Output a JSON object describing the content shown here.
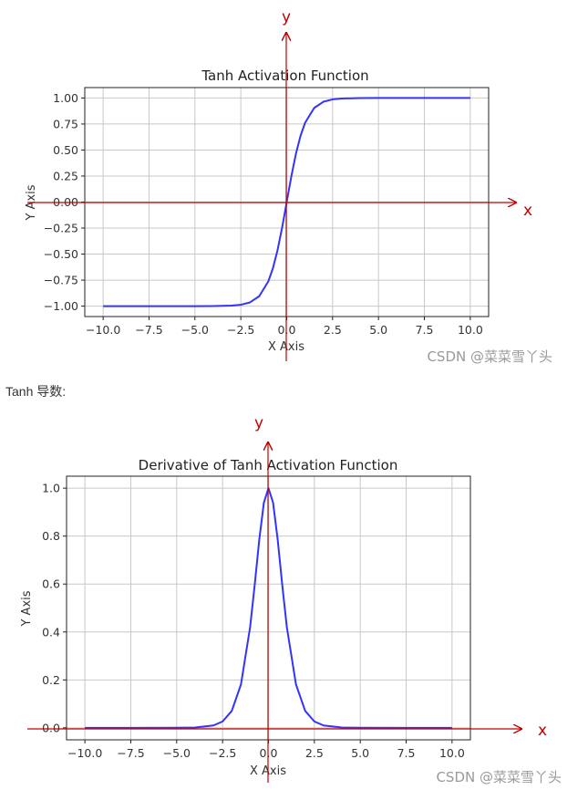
{
  "between_text": "Tanh 导数:",
  "watermark": "CSDN @菜菜雪丫头",
  "colors": {
    "series": "#3333ff",
    "annotation": "#c00000",
    "grid": "#c8c8c8",
    "frame": "#222222",
    "tick_text": "#333333",
    "watermark": "#9a9a9a"
  },
  "chart_data": [
    {
      "type": "line",
      "title": "Tanh Activation Function",
      "xlabel": "X Axis",
      "ylabel": "Y Axis",
      "xlim": [
        -11,
        11
      ],
      "ylim": [
        -1.1,
        1.1
      ],
      "xticks": [
        -10.0,
        -7.5,
        -5.0,
        -2.5,
        0.0,
        2.5,
        5.0,
        7.5,
        10.0
      ],
      "xtick_labels": [
        "−10.0",
        "−7.5",
        "−5.0",
        "−2.5",
        "0.0",
        "2.5",
        "5.0",
        "7.5",
        "10.0"
      ],
      "yticks": [
        1.0,
        0.75,
        0.5,
        0.25,
        0.0,
        -0.25,
        -0.5,
        -0.75,
        -1.0
      ],
      "ytick_labels": [
        "1.00",
        "0.75",
        "0.50",
        "0.25",
        "0.00",
        "−0.25",
        "−0.50",
        "−0.75",
        "−1.00"
      ],
      "grid": true,
      "series": [
        {
          "x": [
            -10,
            -7.5,
            -5,
            -4,
            -3,
            -2.5,
            -2,
            -1.5,
            -1,
            -0.75,
            -0.5,
            -0.25,
            0,
            0.25,
            0.5,
            0.75,
            1,
            1.5,
            2,
            2.5,
            3,
            4,
            5,
            7.5,
            10
          ],
          "y": [
            -1.0,
            -1.0,
            -0.9999,
            -0.9993,
            -0.9951,
            -0.9866,
            -0.964,
            -0.9051,
            -0.7616,
            -0.6351,
            -0.4621,
            -0.2449,
            0.0,
            0.2449,
            0.4621,
            0.6351,
            0.7616,
            0.9051,
            0.964,
            0.9866,
            0.9951,
            0.9993,
            0.9999,
            1.0,
            1.0
          ]
        }
      ],
      "annotations": {
        "x_arrow_label": "x",
        "y_arrow_label": "y"
      }
    },
    {
      "type": "line",
      "title": "Derivative of Tanh Activation Function",
      "xlabel": "X Axis",
      "ylabel": "Y Axis",
      "xlim": [
        -11,
        11
      ],
      "ylim": [
        -0.05,
        1.05
      ],
      "xticks": [
        -10.0,
        -7.5,
        -5.0,
        -2.5,
        0.0,
        2.5,
        5.0,
        7.5,
        10.0
      ],
      "xtick_labels": [
        "−10.0",
        "−7.5",
        "−5.0",
        "−2.5",
        "0.0",
        "2.5",
        "5.0",
        "7.5",
        "10.0"
      ],
      "yticks": [
        1.0,
        0.8,
        0.6,
        0.4,
        0.2,
        0.0
      ],
      "ytick_labels": [
        "1.0",
        "0.8",
        "0.6",
        "0.4",
        "0.2",
        "0.0"
      ],
      "grid": true,
      "series": [
        {
          "x": [
            -10,
            -7.5,
            -5,
            -4,
            -3,
            -2.5,
            -2,
            -1.5,
            -1,
            -0.75,
            -0.5,
            -0.25,
            0,
            0.25,
            0.5,
            0.75,
            1,
            1.5,
            2,
            2.5,
            3,
            4,
            5,
            7.5,
            10
          ],
          "y": [
            0.0,
            0.0,
            0.0002,
            0.0013,
            0.0099,
            0.0266,
            0.0707,
            0.1807,
            0.42,
            0.5966,
            0.7864,
            0.94,
            1.0,
            0.94,
            0.7864,
            0.5966,
            0.42,
            0.1807,
            0.0707,
            0.0266,
            0.0099,
            0.0013,
            0.0002,
            0.0,
            0.0
          ]
        }
      ],
      "annotations": {
        "x_arrow_label": "x",
        "y_arrow_label": "y"
      }
    }
  ]
}
